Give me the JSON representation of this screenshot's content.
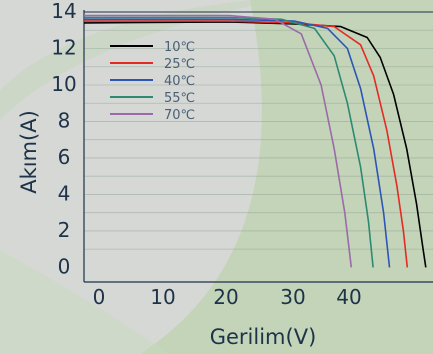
{
  "chart_data": {
    "type": "line",
    "title": "",
    "xlabel": "Gerilim(V)",
    "ylabel": "Akım(A)",
    "xlim": [
      -2,
      51
    ],
    "ylim": [
      -0.8,
      14
    ],
    "x_ticks": [
      0,
      10,
      20,
      30,
      40
    ],
    "x_tick_labels": [
      "0",
      "10",
      "20",
      "30",
      "40"
    ],
    "y_ticks": [
      0,
      2,
      4,
      6,
      8,
      10,
      12,
      14
    ],
    "y_tick_labels": [
      "0",
      "2",
      "4",
      "6",
      "8",
      "10",
      "12",
      "14"
    ],
    "grid": "horizontal",
    "legend_position": "top-left",
    "series": [
      {
        "name": "10℃",
        "color": "#000000",
        "points": [
          [
            -2,
            13.4
          ],
          [
            20,
            13.45
          ],
          [
            30,
            13.35
          ],
          [
            37,
            13.2
          ],
          [
            41,
            12.6
          ],
          [
            43,
            11.5
          ],
          [
            45,
            9.5
          ],
          [
            47,
            6.5
          ],
          [
            48.5,
            3.5
          ],
          [
            49.5,
            1.0
          ],
          [
            49.9,
            0
          ]
        ]
      },
      {
        "name": "25℃",
        "color": "#e32b24",
        "points": [
          [
            -2,
            13.5
          ],
          [
            20,
            13.5
          ],
          [
            30,
            13.4
          ],
          [
            36,
            13.2
          ],
          [
            40,
            12.2
          ],
          [
            42,
            10.5
          ],
          [
            44,
            7.5
          ],
          [
            45.5,
            4.5
          ],
          [
            46.5,
            2.0
          ],
          [
            47.1,
            0
          ]
        ]
      },
      {
        "name": "40℃",
        "color": "#2d55b5",
        "points": [
          [
            -2,
            13.6
          ],
          [
            20,
            13.6
          ],
          [
            30,
            13.5
          ],
          [
            35,
            13.1
          ],
          [
            38,
            12.0
          ],
          [
            40,
            9.8
          ],
          [
            42,
            6.5
          ],
          [
            43.5,
            3.0
          ],
          [
            44.4,
            0
          ]
        ]
      },
      {
        "name": "55℃",
        "color": "#2c8a72",
        "points": [
          [
            -2,
            13.7
          ],
          [
            20,
            13.7
          ],
          [
            28,
            13.6
          ],
          [
            33,
            13.1
          ],
          [
            36,
            11.6
          ],
          [
            38,
            9.0
          ],
          [
            40,
            5.5
          ],
          [
            41.2,
            2.5
          ],
          [
            41.9,
            0
          ]
        ]
      },
      {
        "name": "70℃",
        "color": "#9b6aa8",
        "points": [
          [
            -2,
            13.8
          ],
          [
            20,
            13.8
          ],
          [
            27,
            13.6
          ],
          [
            31,
            12.8
          ],
          [
            34,
            10.0
          ],
          [
            36,
            6.5
          ],
          [
            37.6,
            3.0
          ],
          [
            38.6,
            0
          ]
        ]
      }
    ]
  }
}
